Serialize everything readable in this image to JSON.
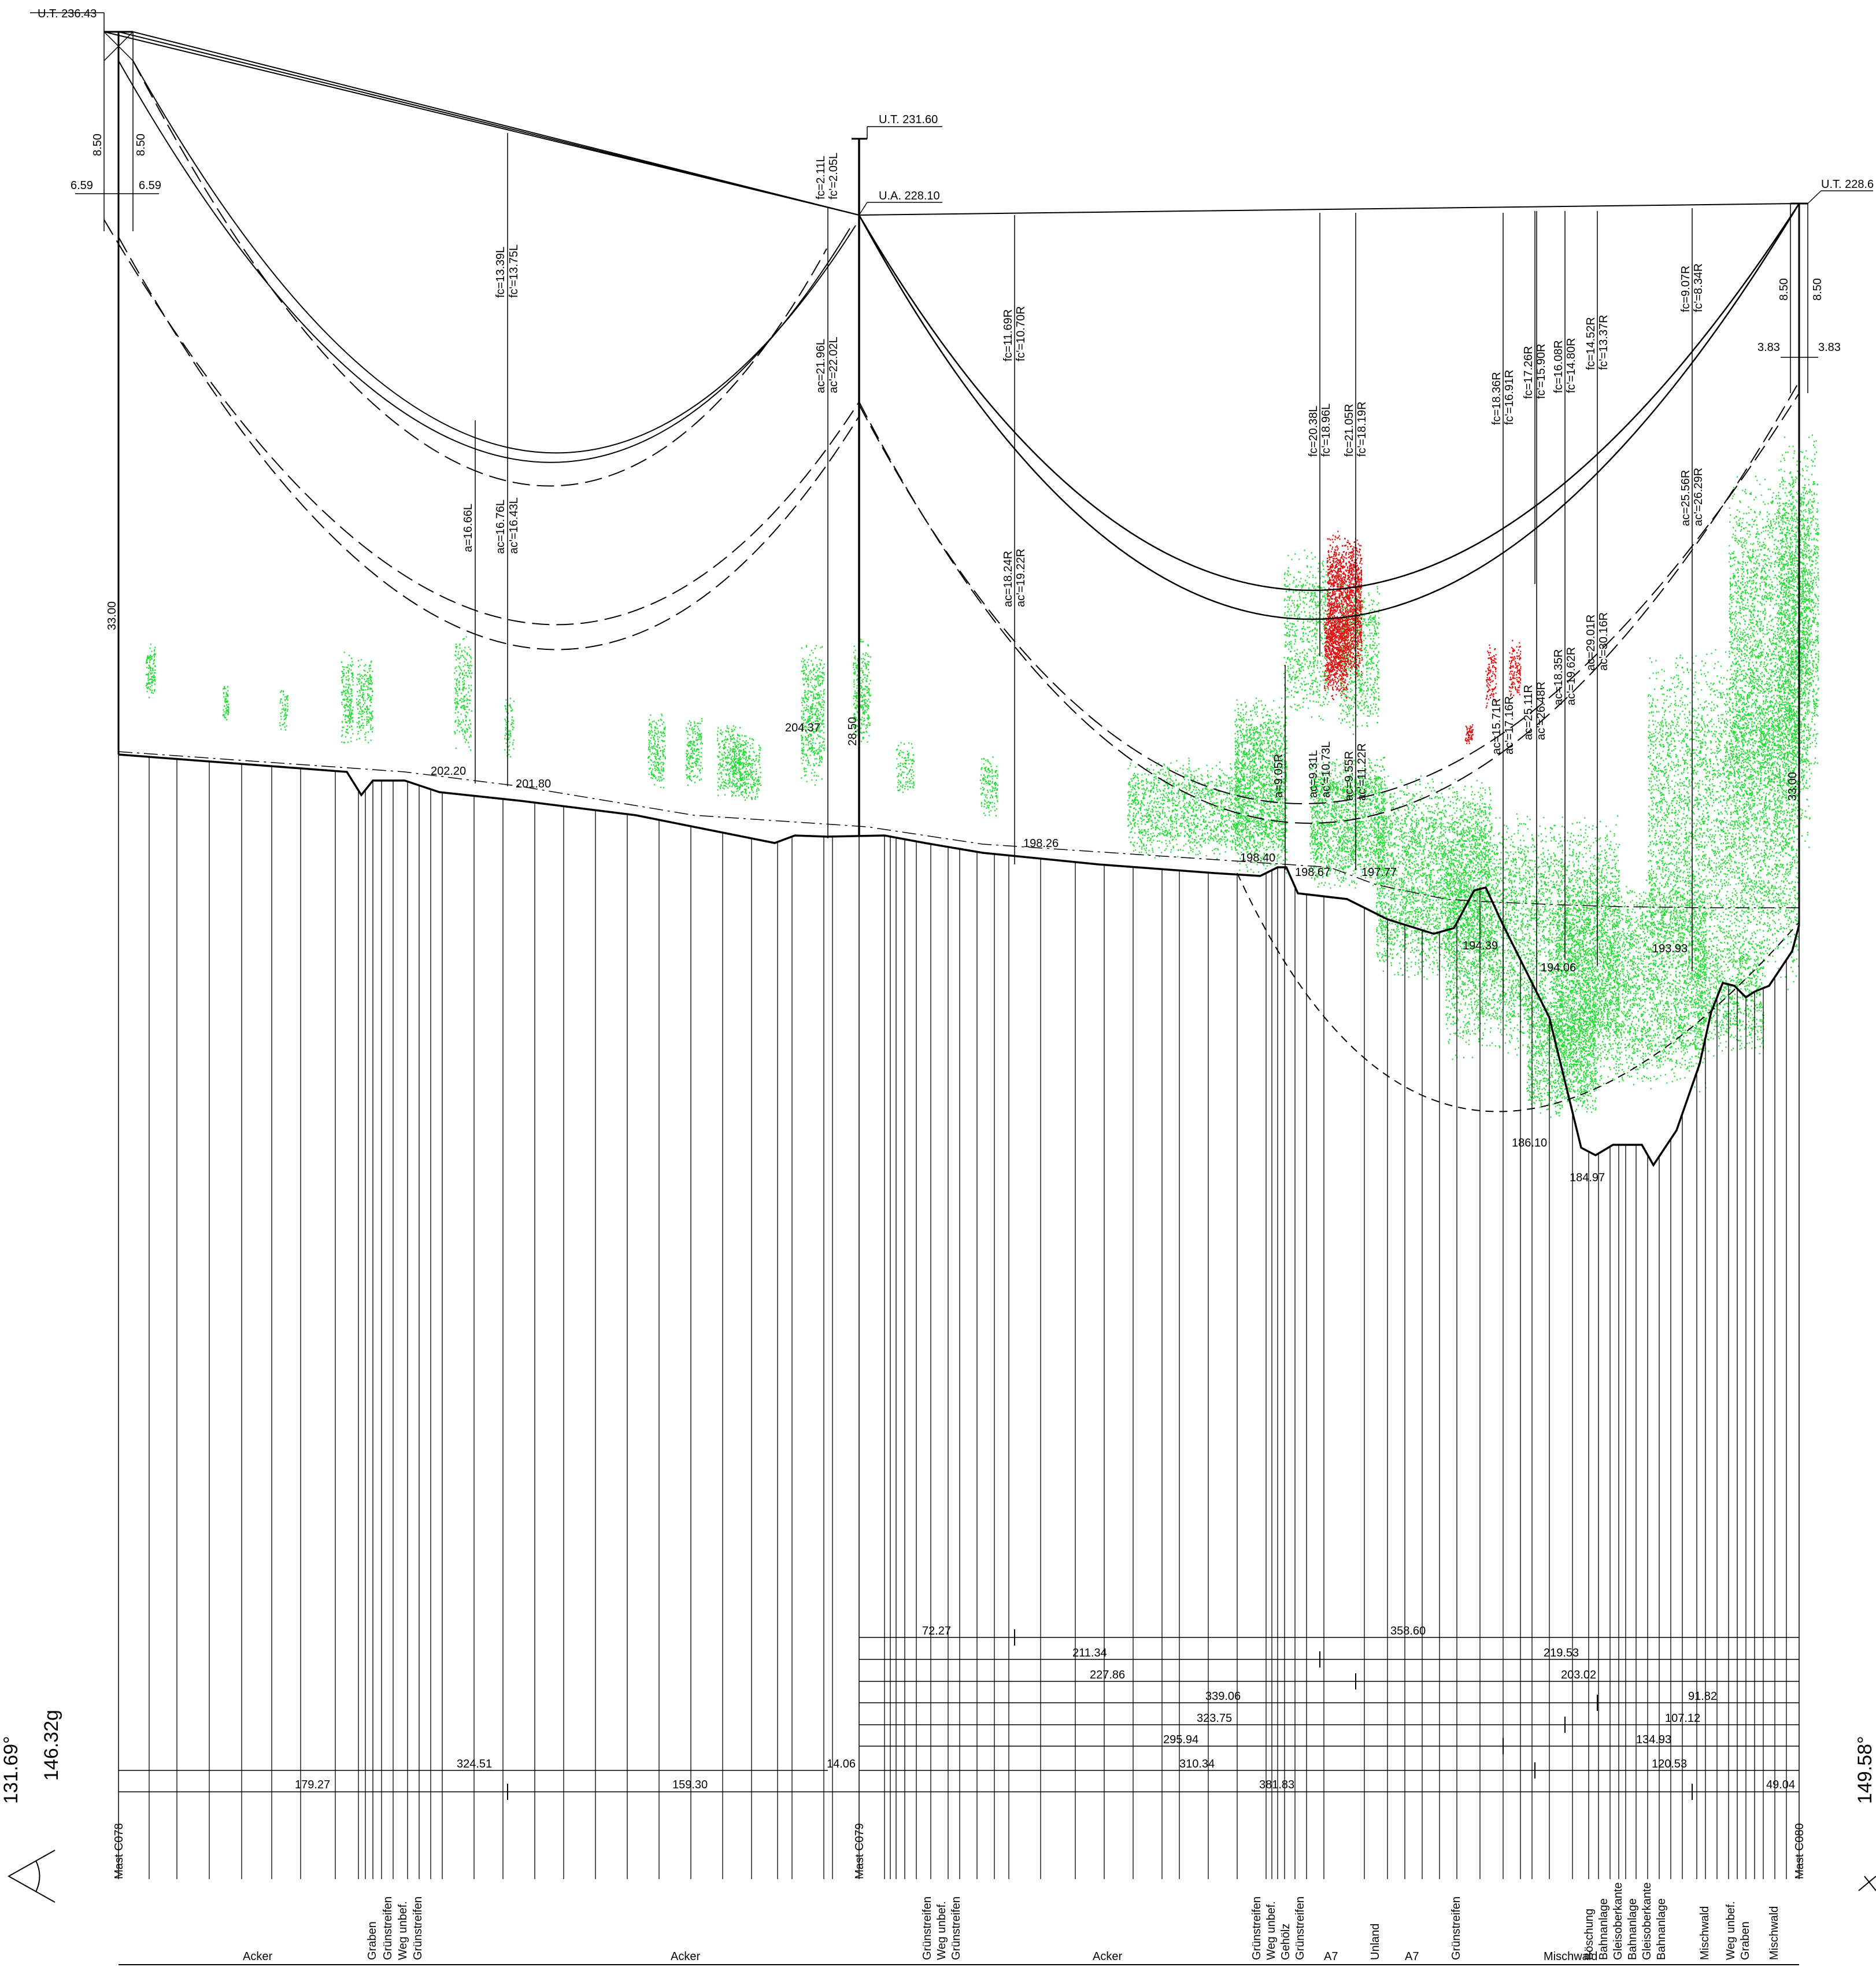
{
  "towers": {
    "C078": {
      "label": "Mast C078",
      "ut": "U.T. 236.43",
      "height": "33.00",
      "w1": "6.59",
      "w2": "6.59",
      "h1": "8.50",
      "h2": "8.50"
    },
    "C079": {
      "label": "Mast C079",
      "ut": "U.T. 231.60",
      "ua": "U.A. 228.10",
      "height": "28.50"
    },
    "C080": {
      "label": "Mast C080",
      "ut": "U.T. 228.6",
      "height": "33.00",
      "w1": "3.83",
      "w2": "3.83",
      "h1": "8.50",
      "h2": "8.50"
    }
  },
  "span1_labels": [
    "fc=13.39L",
    "fc'=13.75L",
    "a=16.66L",
    "ac=16.76L",
    "ac'=16.43L",
    "fc=2.11L",
    "fc'=2.05L",
    "ac=21.96L",
    "ac'=22.02L"
  ],
  "span2_labels": [
    "fc=11.69R",
    "fc'=10.70R",
    "ac=18.24R",
    "ac'=19.22R",
    "fc=20.38L",
    "fc'=18.96L",
    "fc=21.05R",
    "fc'=18.19R",
    "a=9.05R",
    "ac=9.31L",
    "ac'=10.73L",
    "ac=9.55R",
    "ac'=11.22R",
    "fc=18.36R",
    "fc'=16.91R",
    "ac=15.71R",
    "ac'=17.16R",
    "fc=17.26R",
    "fc'=15.90R",
    "ac=25.11R",
    "ac'=26.48R",
    "fc=16.08R",
    "fc'=14.80R",
    "ac=18.35R",
    "ac'=19.62R",
    "fc=14.52R",
    "fc'=13.37R",
    "ac=29.01R",
    "ac'=30.16R",
    "fc=9.07R",
    "fc'=8.34R",
    "ac=25.56R",
    "ac'=26.29R"
  ],
  "elevations": [
    "202.20",
    "201.80",
    "204.37",
    "198.26",
    "198.40",
    "198.67",
    "197.77",
    "194.39",
    "194.06",
    "193.93",
    "186.10",
    "184.97"
  ],
  "distances": {
    "span1": [
      "324.51",
      "179.27",
      "159.30",
      "14.06"
    ],
    "span2": [
      "72.27",
      "358.60",
      "211.34",
      "219.53",
      "227.86",
      "203.02",
      "339.06",
      "91.82",
      "323.75",
      "107.12",
      "295.94",
      "134.93",
      "310.34",
      "120.53",
      "381.83",
      "49.04"
    ]
  },
  "land_use": [
    "Acker",
    "Graben",
    "Grünstreifen",
    "Weg unbef.",
    "Grünstreifen",
    "Acker",
    "Grünstreifen",
    "Weg unbef.",
    "Grünstreifen",
    "Acker",
    "Grünstreifen",
    "Weg unbef.",
    "Gehölz",
    "Grünstreifen",
    "A7",
    "Unland",
    "A7",
    "Grünstreifen",
    "Mischwald",
    "Böschung",
    "Bahnanlage",
    "Gleisoberkante",
    "Bahnanlage",
    "Gleisoberkante",
    "Bahnanlage",
    "Mischwald",
    "Weg unbef.",
    "Graben",
    "Mischwald"
  ],
  "angles": {
    "left_1": "131.69°",
    "left_2": "146.32g",
    "right": "149.58°"
  },
  "colors": {
    "vegetation": "#22dd33",
    "violation": "#e01010"
  }
}
